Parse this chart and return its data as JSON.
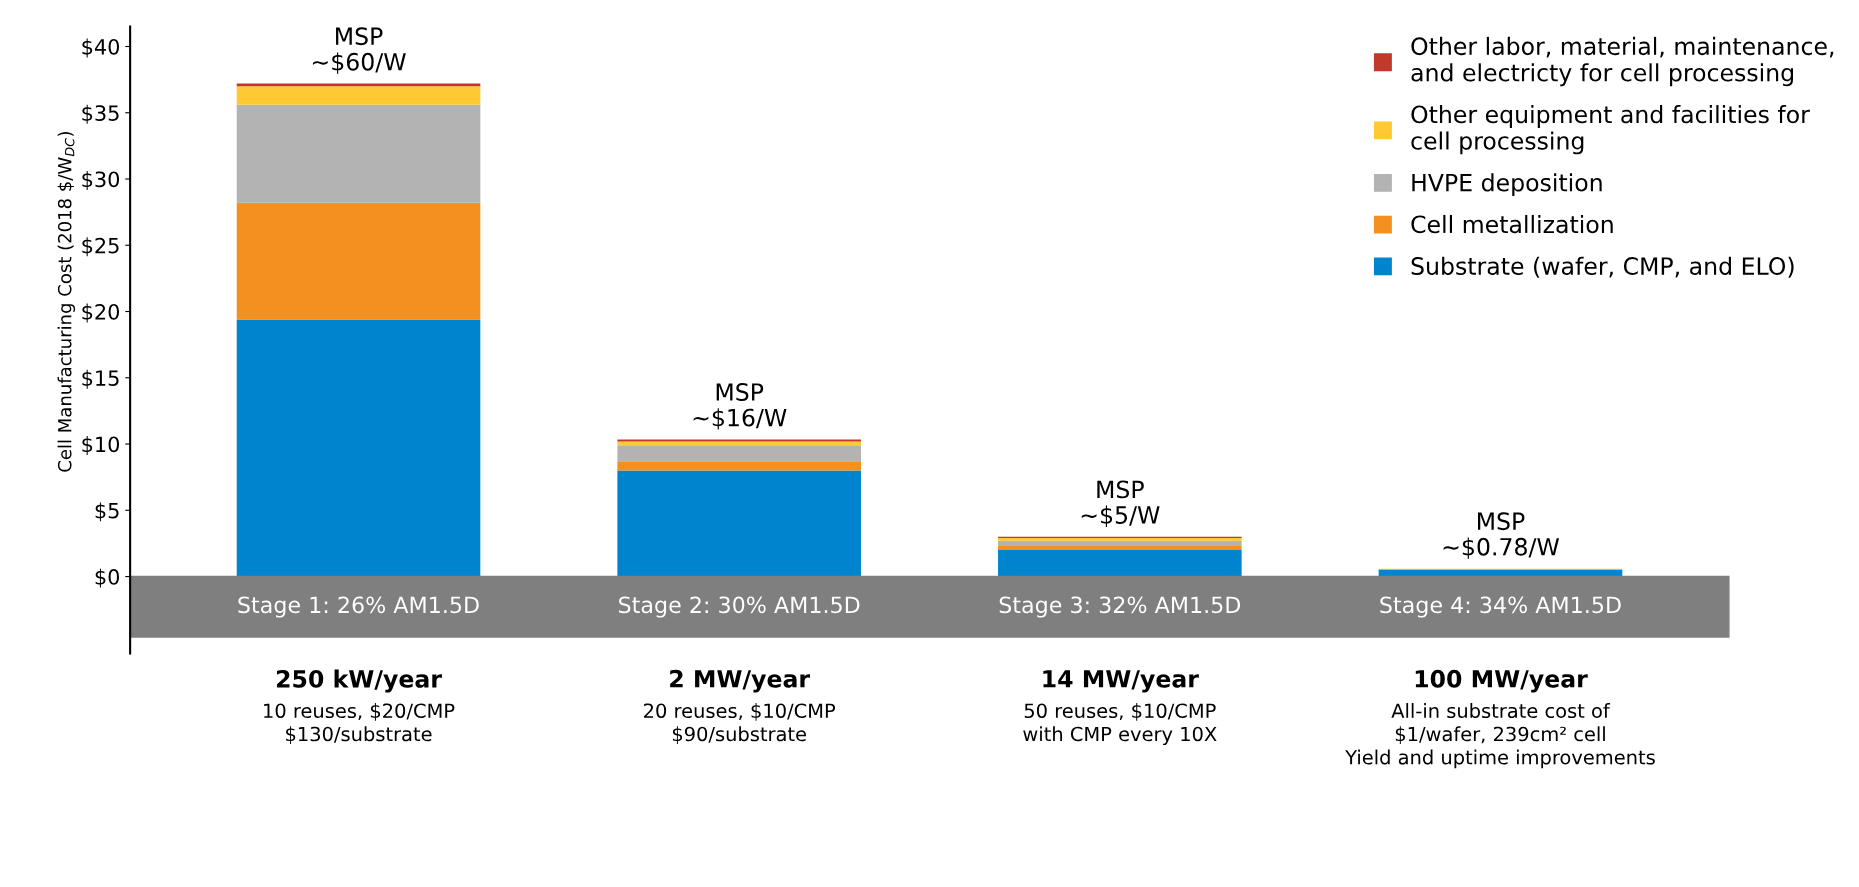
{
  "chart_data": {
    "type": "bar",
    "stacked": true,
    "ylabel": "Cell Manufacturing Cost (2018 $/W$_{DC}$)",
    "categories": [
      "Stage 1: 26% AM1.5D",
      "Stage 2: 30% AM1.5D",
      "Stage 3: 32% AM1.5D",
      "Stage 4: 34% AM1.5D"
    ],
    "series": [
      {
        "name": "Substrate (wafer, CMP, and ELO)",
        "color": "#0084ce",
        "values": [
          19.4,
          8.0,
          2.0,
          0.5
        ]
      },
      {
        "name": "Cell metallization",
        "color": "#f39020",
        "values": [
          8.8,
          0.7,
          0.3,
          0.05
        ]
      },
      {
        "name": "HVPE deposition",
        "color": "#b3b3b3",
        "values": [
          7.4,
          1.2,
          0.4,
          0.02
        ]
      },
      {
        "name": "Other equipment and facilities for\ncell processing",
        "color": "#ffc933",
        "values": [
          1.4,
          0.3,
          0.2,
          0.02
        ]
      },
      {
        "name": "Other labor, material, maintenance,\nand electricty for cell processing",
        "color": "#c0392b",
        "values": [
          0.2,
          0.15,
          0.1,
          null
        ]
      }
    ],
    "ylim": [
      0,
      41.5
    ],
    "yticks": [
      {
        "value": 0,
        "label": "$0"
      },
      {
        "value": 5,
        "label": "$5"
      },
      {
        "value": 10,
        "label": "$10"
      },
      {
        "value": 15,
        "label": "$15"
      },
      {
        "value": 20,
        "label": "$20"
      },
      {
        "value": 25,
        "label": "$25"
      },
      {
        "value": 30,
        "label": "$30"
      },
      {
        "value": 35,
        "label": "$35"
      },
      {
        "value": 40,
        "label": "$40"
      }
    ],
    "grid": false,
    "legend": "top right",
    "annotations": [
      {
        "text": "MSP\n~$60/W",
        "x": "Stage 1: 26% AM1.5D",
        "y": 37.2
      },
      {
        "text": "MSP\n~$16/W",
        "x": "Stage 2: 30% AM1.5D",
        "y": 10.35
      },
      {
        "text": "MSP\n~$5/W",
        "x": "Stage 3: 32% AM1.5D",
        "y": 3.0
      },
      {
        "text": "MSP\n~$0.78/W",
        "x": "Stage 4: 34% AM1.5D",
        "y": 0.6
      },
      "250 kW/year\n10 reuses, $20/CMP\n$130/substrate",
      "2 MW/year\n20 reuses, $10/CMP\n$90/substrate",
      "14 MW/year\n50 reuses, $10/CMP\nwith CMP every 10X",
      "100 MW/year\nAll-in substrate cost of\n$1/wafer, 239cm² cell\nYield and uptime improvements"
    ]
  }
}
